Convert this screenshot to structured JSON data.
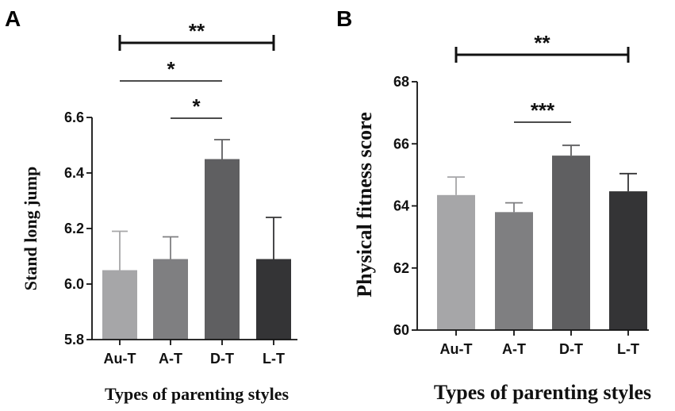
{
  "figure": {
    "panel_a_letter": "A",
    "panel_b_letter": "B"
  },
  "colors": {
    "bars": [
      "#a6a6a8",
      "#7f7f81",
      "#5f5f61",
      "#343436"
    ],
    "ink": "#111111"
  },
  "chart_data": [
    {
      "type": "bar",
      "panel": "A",
      "title": "",
      "xlabel": "Types of parenting styles",
      "ylabel": "Stand long jump",
      "categories": [
        "Au-T",
        "A-T",
        "D-T",
        "L-T"
      ],
      "values": [
        6.05,
        6.09,
        6.45,
        6.09
      ],
      "error_upper": [
        6.19,
        6.17,
        6.52,
        6.24
      ],
      "ylim": [
        5.8,
        6.6
      ],
      "yticks": [
        5.8,
        6.0,
        6.2,
        6.4,
        6.6
      ],
      "ytick_labels": [
        "5.8",
        "6.0",
        "6.2",
        "6.4",
        "6.6"
      ],
      "significance": [
        {
          "from": 0,
          "to": 3,
          "label": "**",
          "bold": true
        },
        {
          "from": 0,
          "to": 2,
          "label": "*",
          "bold": false
        },
        {
          "from": 1,
          "to": 2,
          "label": "*",
          "bold": false
        }
      ]
    },
    {
      "type": "bar",
      "panel": "B",
      "title": "",
      "xlabel": "Types of parenting styles",
      "ylabel": "Physical fitness score",
      "categories": [
        "Au-T",
        "A-T",
        "D-T",
        "L-T"
      ],
      "values": [
        64.35,
        63.8,
        65.62,
        64.47
      ],
      "error_upper": [
        64.93,
        64.1,
        65.95,
        65.04
      ],
      "ylim": [
        60,
        68
      ],
      "yticks": [
        60,
        62,
        64,
        66,
        68
      ],
      "ytick_labels": [
        "60",
        "62",
        "64",
        "66",
        "68"
      ],
      "significance": [
        {
          "from": 0,
          "to": 3,
          "label": "**",
          "bold": true
        },
        {
          "from": 1,
          "to": 2,
          "label": "***",
          "bold": false
        }
      ]
    }
  ]
}
